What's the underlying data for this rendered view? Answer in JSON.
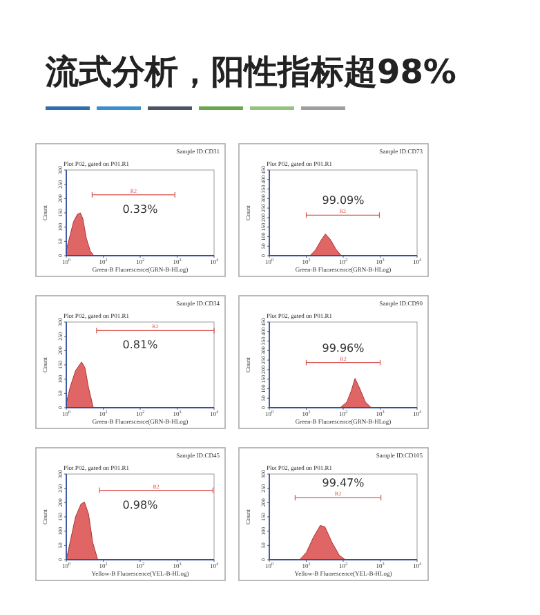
{
  "chart_data": [
    {
      "type": "other",
      "title": "流式分析，阳性指标超98%"
    },
    {
      "type": "area",
      "title": "Plot P02, gated on P01.R1",
      "subtitle": "Sample ID:CD31",
      "xlabel": "Green-B Fluorescence(GRN-B-HLog)",
      "ylabel": "Count",
      "log": "x",
      "xlim": [
        1,
        10000
      ],
      "ylim": [
        0,
        300
      ],
      "xticks": [
        {
          "value": 1,
          "label": "10$^{0}$"
        },
        {
          "value": 10,
          "label": "10$^{1}$"
        },
        {
          "value": 100,
          "label": "10$^{2}$"
        },
        {
          "value": 1000,
          "label": "10$^{3}$"
        },
        {
          "value": 10000,
          "label": "10$^{4}$"
        }
      ],
      "yticks": [
        0,
        50,
        100,
        150,
        200,
        250,
        300
      ],
      "annotations": [
        "0.33%"
      ],
      "series": [
        {
          "type": "area",
          "color": "#e06666",
          "x": [
            1,
            1.26,
            1.58,
            2.0,
            2.4,
            2.8,
            3.5,
            4.5,
            5.6
          ],
          "values": [
            20,
            70,
            120,
            145,
            150,
            130,
            60,
            15,
            0
          ]
        },
        {
          "type": "line",
          "name": "R2",
          "color": "#d9534f",
          "x": [
            5,
            870
          ],
          "values": [
            213,
            213
          ]
        }
      ]
    },
    {
      "type": "area",
      "title": "Plot P02, gated on P01.R1",
      "subtitle": "Sample ID:CD73",
      "xlabel": "Green-B Fluorescence(GRN-B-HLog)",
      "ylabel": "Count",
      "log": "x",
      "xlim": [
        1,
        10000
      ],
      "ylim": [
        0,
        450
      ],
      "xticks": [
        {
          "value": 1,
          "label": "10$^{0}$"
        },
        {
          "value": 10,
          "label": "10$^{1}$"
        },
        {
          "value": 100,
          "label": "10$^{2}$"
        },
        {
          "value": 1000,
          "label": "10$^{3}$"
        },
        {
          "value": 10000,
          "label": "10$^{4}$"
        }
      ],
      "yticks": [
        0,
        50,
        100,
        150,
        200,
        250,
        300,
        350,
        400,
        450
      ],
      "annotations": [
        "99.09%"
      ],
      "series": [
        {
          "type": "area",
          "color": "#e06666",
          "x": [
            12.6,
            17.8,
            25,
            33,
            45,
            63,
            89
          ],
          "values": [
            0,
            30,
            80,
            114,
            85,
            35,
            0
          ]
        },
        {
          "type": "line",
          "name": "R2",
          "color": "#d9534f",
          "x": [
            10,
            955
          ],
          "values": [
            213,
            213
          ]
        }
      ]
    },
    {
      "type": "area",
      "title": "Plot P02, gated on P01.R1",
      "subtitle": "Sample ID:CD34",
      "xlabel": "Green-B Fluorescence(GRN-B-HLog)",
      "ylabel": "Count",
      "log": "x",
      "xlim": [
        1,
        10000
      ],
      "ylim": [
        0,
        300
      ],
      "xticks": [
        {
          "value": 1,
          "label": "10$^{0}$"
        },
        {
          "value": 10,
          "label": "10$^{1}$"
        },
        {
          "value": 100,
          "label": "10$^{2}$"
        },
        {
          "value": 1000,
          "label": "10$^{3}$"
        },
        {
          "value": 10000,
          "label": "10$^{4}$"
        }
      ],
      "yticks": [
        0,
        50,
        100,
        150,
        200,
        250,
        300
      ],
      "annotations": [
        "0.81%"
      ],
      "series": [
        {
          "type": "area",
          "color": "#e06666",
          "x": [
            1,
            1.26,
            1.78,
            2.6,
            3.2,
            4,
            5.4
          ],
          "values": [
            15,
            70,
            130,
            160,
            140,
            70,
            0
          ]
        },
        {
          "type": "line",
          "name": "R2",
          "color": "#d9534f",
          "x": [
            6.6,
            10000
          ],
          "values": [
            270,
            270
          ]
        }
      ]
    },
    {
      "type": "area",
      "title": "Plot P02, gated on P01.R1",
      "subtitle": "Sample ID:CD90",
      "xlabel": "Green-B Fluorescence(GRN-B-HLog)",
      "ylabel": "Count",
      "log": "x",
      "xlim": [
        1,
        10000
      ],
      "ylim": [
        0,
        450
      ],
      "xticks": [
        {
          "value": 1,
          "label": "10$^{0}$"
        },
        {
          "value": 10,
          "label": "10$^{1}$"
        },
        {
          "value": 100,
          "label": "10$^{2}$"
        },
        {
          "value": 1000,
          "label": "10$^{3}$"
        },
        {
          "value": 10000,
          "label": "10$^{4}$"
        }
      ],
      "yticks": [
        0,
        50,
        100,
        150,
        200,
        250,
        300,
        350,
        400,
        450
      ],
      "annotations": [
        "99.96%"
      ],
      "series": [
        {
          "type": "area",
          "color": "#e06666",
          "x": [
            83,
            126,
            166,
            209,
            282,
            398,
            575
          ],
          "values": [
            0,
            30,
            90,
            154,
            100,
            30,
            0
          ]
        },
        {
          "type": "line",
          "name": "R2",
          "color": "#d9534f",
          "x": [
            10,
            1000
          ],
          "values": [
            237,
            237
          ]
        }
      ]
    },
    {
      "type": "area",
      "title": "Plot P02, gated on P01.R1",
      "subtitle": "Sample ID:CD45",
      "xlabel": "Yellow-B Fluorescence(YEL-B-HLog)",
      "ylabel": "Count",
      "log": "x",
      "xlim": [
        1,
        10000
      ],
      "ylim": [
        0,
        300
      ],
      "xticks": [
        {
          "value": 1,
          "label": "10$^{0}$"
        },
        {
          "value": 10,
          "label": "10$^{1}$"
        },
        {
          "value": 100,
          "label": "10$^{2}$"
        },
        {
          "value": 1000,
          "label": "10$^{3}$"
        },
        {
          "value": 10000,
          "label": "10$^{4}$"
        }
      ],
      "yticks": [
        0,
        50,
        100,
        150,
        200,
        250,
        300
      ],
      "annotations": [
        "0.98%"
      ],
      "series": [
        {
          "type": "area",
          "color": "#e06666",
          "x": [
            1,
            1.26,
            1.78,
            2.5,
            3.1,
            4,
            5.2,
            7.1
          ],
          "values": [
            0,
            60,
            150,
            195,
            202,
            160,
            60,
            0
          ]
        },
        {
          "type": "line",
          "name": "R2",
          "color": "#d9534f",
          "x": [
            7.9,
            9330
          ],
          "values": [
            243,
            243
          ]
        }
      ]
    },
    {
      "type": "area",
      "title": "Plot P02, gated on P01.R1",
      "subtitle": "Sample ID:CD105",
      "xlabel": "Yellow-B Fluorescence(YEL-B-HLog)",
      "ylabel": "Count",
      "log": "x",
      "xlim": [
        1,
        10000
      ],
      "ylim": [
        0,
        300
      ],
      "xticks": [
        {
          "value": 1,
          "label": "10$^{0}$"
        },
        {
          "value": 10,
          "label": "10$^{1}$"
        },
        {
          "value": 100,
          "label": "10$^{2}$"
        },
        {
          "value": 1000,
          "label": "10$^{3}$"
        },
        {
          "value": 10000,
          "label": "10$^{4}$"
        }
      ],
      "yticks": [
        0,
        50,
        100,
        150,
        200,
        250,
        300
      ],
      "annotations": [
        "99.47%"
      ],
      "series": [
        {
          "type": "area",
          "color": "#e06666",
          "x": [
            6.6,
            10,
            15.8,
            24,
            32,
            50,
            79,
            115
          ],
          "values": [
            0,
            25,
            80,
            120,
            115,
            60,
            15,
            0
          ]
        },
        {
          "type": "line",
          "name": "R2",
          "color": "#d9534f",
          "x": [
            5,
            1050
          ],
          "values": [
            217,
            217
          ]
        }
      ]
    }
  ]
}
